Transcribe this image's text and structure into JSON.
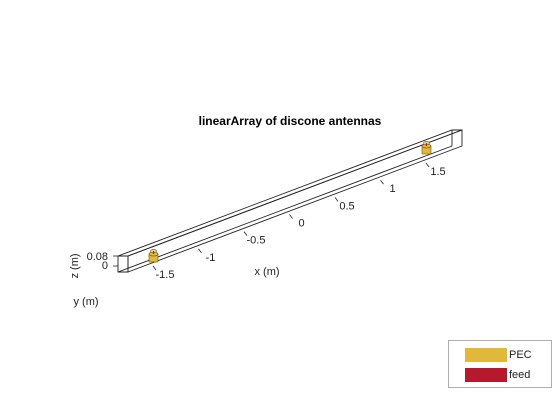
{
  "title": "linearArray of discone antennas",
  "axes": {
    "x_label": "x (m)",
    "y_label": "y (m)",
    "z_label": "z (m)",
    "x_ticks": [
      "-1.5",
      "-1",
      "-0.5",
      "0",
      "0.5",
      "1",
      "1.5"
    ],
    "z_ticks": [
      "0.08",
      "0"
    ]
  },
  "legend": {
    "items": [
      {
        "label": "PEC",
        "color": "#E0B83A"
      },
      {
        "label": "feed",
        "color": "#B5192E"
      }
    ]
  },
  "colors": {
    "pec": "#E0B83A",
    "feed": "#B5192E",
    "structure": "#222222"
  }
}
